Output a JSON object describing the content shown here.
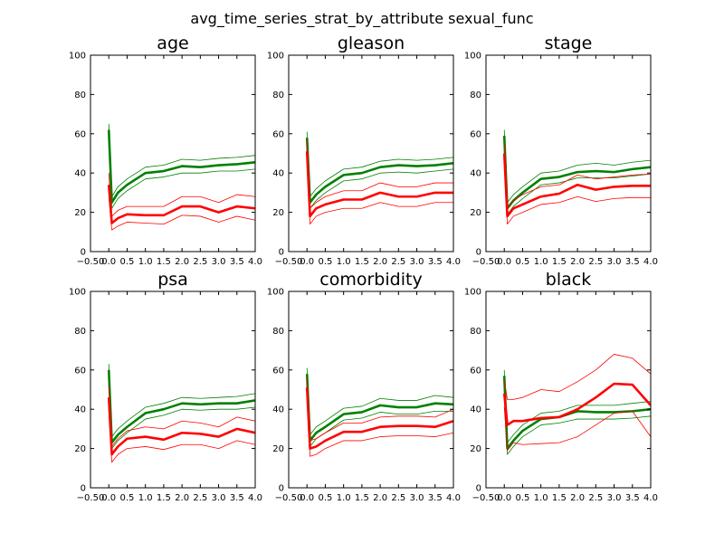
{
  "figure": {
    "title": "avg_time_series_strat_by_attribute sexual_func"
  },
  "colors": {
    "green": "#008000",
    "red": "#ff0000"
  },
  "chart_data": [
    {
      "type": "line",
      "title": "age",
      "xlim": [
        -0.5,
        4.0
      ],
      "ylim": [
        0,
        100
      ],
      "xticks": [
        "−0.50",
        "0.0",
        "0.5",
        "1.0",
        "1.5",
        "2.0",
        "2.5",
        "3.0",
        "3.5",
        "4.0"
      ],
      "yticks": [
        "0",
        "20",
        "40",
        "60",
        "80",
        "100"
      ],
      "x": [
        0.0,
        0.083,
        0.25,
        0.5,
        1.0,
        1.5,
        2.0,
        2.5,
        3.0,
        3.5,
        4.0
      ],
      "series": [
        {
          "color": "green",
          "role": "mean",
          "values": [
            62,
            25,
            30,
            34,
            40,
            41,
            43.5,
            43,
            44,
            44.5,
            45.5
          ]
        },
        {
          "color": "green",
          "role": "upper",
          "values": [
            65,
            28,
            33,
            37,
            43,
            44,
            47,
            46.5,
            47.5,
            48,
            49
          ]
        },
        {
          "color": "green",
          "role": "lower",
          "values": [
            59,
            22,
            27,
            31,
            37,
            38,
            40,
            40,
            41,
            41,
            42
          ]
        },
        {
          "color": "red",
          "role": "mean",
          "values": [
            34,
            14.5,
            17,
            19,
            18.5,
            18.5,
            23,
            23,
            20,
            23,
            22
          ]
        },
        {
          "color": "red",
          "role": "upper",
          "values": [
            40,
            18,
            21,
            23,
            23,
            23,
            28,
            28,
            25,
            29,
            28
          ]
        },
        {
          "color": "red",
          "role": "lower",
          "values": [
            28,
            11,
            13,
            15,
            14.5,
            14,
            18.5,
            18,
            15,
            18,
            16
          ]
        }
      ]
    },
    {
      "type": "line",
      "title": "gleason",
      "xlim": [
        -0.5,
        4.0
      ],
      "ylim": [
        0,
        100
      ],
      "xticks": [
        "−0.50",
        "0.0",
        "0.5",
        "1.0",
        "1.5",
        "2.0",
        "2.5",
        "3.0",
        "3.5",
        "4.0"
      ],
      "yticks": [
        "0",
        "20",
        "40",
        "60",
        "80",
        "100"
      ],
      "x": [
        0.0,
        0.083,
        0.25,
        0.5,
        1.0,
        1.5,
        2.0,
        2.5,
        3.0,
        3.5,
        4.0
      ],
      "series": [
        {
          "color": "green",
          "role": "mean",
          "values": [
            58,
            25,
            29,
            33,
            39,
            40,
            43,
            44,
            43.5,
            44,
            45
          ]
        },
        {
          "color": "green",
          "role": "upper",
          "values": [
            61,
            28,
            32,
            36,
            42,
            43,
            46,
            47,
            46.5,
            47,
            48
          ]
        },
        {
          "color": "green",
          "role": "lower",
          "values": [
            55,
            22,
            26,
            30,
            36,
            37,
            40,
            40.5,
            40,
            41,
            42
          ]
        },
        {
          "color": "red",
          "role": "mean",
          "values": [
            51,
            18,
            22,
            24,
            26.5,
            26.5,
            30,
            28,
            28,
            30,
            30
          ]
        },
        {
          "color": "red",
          "role": "upper",
          "values": [
            57,
            22,
            25,
            28,
            31,
            31,
            35,
            33,
            33,
            35,
            35
          ]
        },
        {
          "color": "red",
          "role": "lower",
          "values": [
            45,
            14,
            18,
            20,
            22,
            22,
            25,
            23,
            23,
            25,
            25
          ]
        }
      ]
    },
    {
      "type": "line",
      "title": "stage",
      "xlim": [
        -0.5,
        4.0
      ],
      "ylim": [
        0,
        100
      ],
      "xticks": [
        "−0.50",
        "0.0",
        "0.5",
        "1.0",
        "1.5",
        "2.0",
        "2.5",
        "3.0",
        "3.5",
        "4.0"
      ],
      "yticks": [
        "0",
        "20",
        "40",
        "60",
        "80",
        "100"
      ],
      "x": [
        0.0,
        0.083,
        0.25,
        0.5,
        1.0,
        1.5,
        2.0,
        2.5,
        3.0,
        3.5,
        4.0
      ],
      "series": [
        {
          "color": "green",
          "role": "mean",
          "values": [
            59,
            22,
            26,
            30,
            37,
            38,
            40.5,
            41,
            40.5,
            42,
            43
          ]
        },
        {
          "color": "green",
          "role": "upper",
          "values": [
            62,
            25,
            29,
            33,
            40,
            41,
            44,
            45,
            44,
            45.5,
            46.5
          ]
        },
        {
          "color": "green",
          "role": "lower",
          "values": [
            56,
            19,
            23,
            27,
            34,
            35,
            37.5,
            37.5,
            37.5,
            38.5,
            39.5
          ]
        },
        {
          "color": "red",
          "role": "mean",
          "values": [
            50,
            18,
            22,
            24,
            28,
            29.5,
            34,
            31.5,
            33,
            33.5,
            33.5
          ]
        },
        {
          "color": "red",
          "role": "upper",
          "values": [
            55,
            22,
            26,
            29,
            33,
            34,
            39,
            37,
            38,
            39,
            39.5
          ]
        },
        {
          "color": "red",
          "role": "lower",
          "values": [
            45,
            14,
            18,
            20,
            24,
            25,
            28,
            25.5,
            27,
            27.5,
            27.5
          ]
        }
      ]
    },
    {
      "type": "line",
      "title": "psa",
      "xlim": [
        -0.5,
        4.0
      ],
      "ylim": [
        0,
        100
      ],
      "xticks": [
        "−0.50",
        "0.0",
        "0.5",
        "1.0",
        "1.5",
        "2.0",
        "2.5",
        "3.0",
        "3.5",
        "4.0"
      ],
      "yticks": [
        "0",
        "20",
        "40",
        "60",
        "80",
        "100"
      ],
      "x": [
        0.0,
        0.083,
        0.25,
        0.5,
        1.0,
        1.5,
        2.0,
        2.5,
        3.0,
        3.5,
        4.0
      ],
      "series": [
        {
          "color": "green",
          "role": "mean",
          "values": [
            60,
            23,
            27,
            31,
            38,
            40,
            43,
            42.5,
            43,
            43,
            44.5
          ]
        },
        {
          "color": "green",
          "role": "upper",
          "values": [
            63,
            26,
            30,
            34,
            41,
            43,
            46,
            45.5,
            46,
            46.5,
            48
          ]
        },
        {
          "color": "green",
          "role": "lower",
          "values": [
            57,
            20,
            24,
            28,
            35,
            37,
            40,
            39.5,
            40,
            40,
            41
          ]
        },
        {
          "color": "red",
          "role": "mean",
          "values": [
            46,
            17,
            21,
            25,
            26,
            24.5,
            28,
            27.5,
            26,
            30,
            28
          ]
        },
        {
          "color": "red",
          "role": "upper",
          "values": [
            52,
            21,
            25,
            29,
            31,
            30,
            34,
            33,
            31,
            36,
            34
          ]
        },
        {
          "color": "red",
          "role": "lower",
          "values": [
            40,
            13,
            17,
            20,
            21,
            19.5,
            22,
            22,
            20,
            24,
            22
          ]
        }
      ]
    },
    {
      "type": "line",
      "title": "comorbidity",
      "xlim": [
        -0.5,
        4.0
      ],
      "ylim": [
        0,
        100
      ],
      "xticks": [
        "−0.50",
        "0.0",
        "0.5",
        "1.0",
        "1.5",
        "2.0",
        "2.5",
        "3.0",
        "3.5",
        "4.0"
      ],
      "yticks": [
        "0",
        "20",
        "40",
        "60",
        "80",
        "100"
      ],
      "x": [
        0.0,
        0.083,
        0.25,
        0.5,
        1.0,
        1.5,
        2.0,
        2.5,
        3.0,
        3.5,
        4.0
      ],
      "series": [
        {
          "color": "green",
          "role": "mean",
          "values": [
            58,
            24,
            28,
            31,
            37.5,
            38.5,
            42,
            41,
            41,
            43,
            42.5
          ]
        },
        {
          "color": "green",
          "role": "upper",
          "values": [
            61,
            27,
            31,
            34,
            40.5,
            41.5,
            45.5,
            44.5,
            44.5,
            47,
            46
          ]
        },
        {
          "color": "green",
          "role": "lower",
          "values": [
            55,
            21,
            25,
            28,
            34.5,
            35.5,
            38.5,
            37.5,
            37.5,
            39,
            39
          ]
        },
        {
          "color": "red",
          "role": "mean",
          "values": [
            51,
            20,
            21,
            24,
            28.5,
            28.5,
            31,
            31.5,
            31.5,
            31,
            34
          ]
        },
        {
          "color": "red",
          "role": "upper",
          "values": [
            56,
            24,
            25,
            28,
            33,
            33,
            36,
            36.5,
            36.5,
            36,
            40
          ]
        },
        {
          "color": "red",
          "role": "lower",
          "values": [
            46,
            16,
            17,
            20,
            24,
            24,
            26,
            26.5,
            26.5,
            26,
            28
          ]
        }
      ]
    },
    {
      "type": "line",
      "title": "black",
      "xlim": [
        -0.5,
        4.0
      ],
      "ylim": [
        0,
        100
      ],
      "xticks": [
        "−0.50",
        "0.0",
        "0.5",
        "1.0",
        "1.5",
        "2.0",
        "2.5",
        "3.0",
        "3.5",
        "4.0"
      ],
      "yticks": [
        "0",
        "20",
        "40",
        "60",
        "80",
        "100"
      ],
      "x": [
        0.0,
        0.083,
        0.25,
        0.5,
        1.0,
        1.5,
        2.0,
        2.5,
        3.0,
        3.5,
        4.0
      ],
      "series": [
        {
          "color": "green",
          "role": "mean",
          "values": [
            57,
            20,
            24,
            29,
            35,
            36,
            39,
            38.5,
            38.5,
            39,
            40
          ]
        },
        {
          "color": "green",
          "role": "upper",
          "values": [
            60,
            23,
            27,
            32,
            38,
            39,
            42,
            42,
            42,
            43,
            44
          ]
        },
        {
          "color": "green",
          "role": "lower",
          "values": [
            54,
            17,
            21,
            26,
            32,
            33,
            35,
            35,
            35,
            35.5,
            36.5
          ]
        },
        {
          "color": "red",
          "role": "mean",
          "values": [
            48,
            32,
            34,
            34,
            35.5,
            36,
            40,
            46,
            53,
            52.5,
            42
          ]
        },
        {
          "color": "red",
          "role": "upper",
          "values": [
            55,
            45,
            45,
            46,
            50,
            49,
            54,
            60,
            68,
            66,
            58
          ]
        },
        {
          "color": "red",
          "role": "lower",
          "values": [
            41,
            19,
            23,
            22,
            22.5,
            23,
            26,
            32,
            38,
            39,
            26
          ]
        }
      ]
    }
  ]
}
